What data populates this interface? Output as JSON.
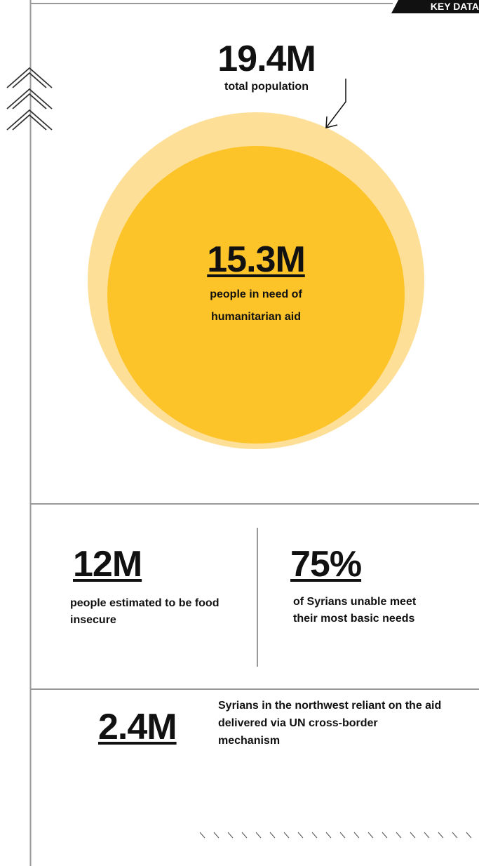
{
  "badge": "KEY DATA",
  "total": {
    "value": "19.4M",
    "label": "total population"
  },
  "in_need": {
    "value": "15.3M",
    "label": "people in need of humanitarian aid"
  },
  "food": {
    "value": "12M",
    "label": "people estimated to be food insecure"
  },
  "basic": {
    "value": "75%",
    "label": "of Syrians unable meet their most basic needs"
  },
  "northwest": {
    "value": "2.4M",
    "label": "Syrians in the northwest reliant on the aid delivered via UN cross-border mechanism"
  }
}
